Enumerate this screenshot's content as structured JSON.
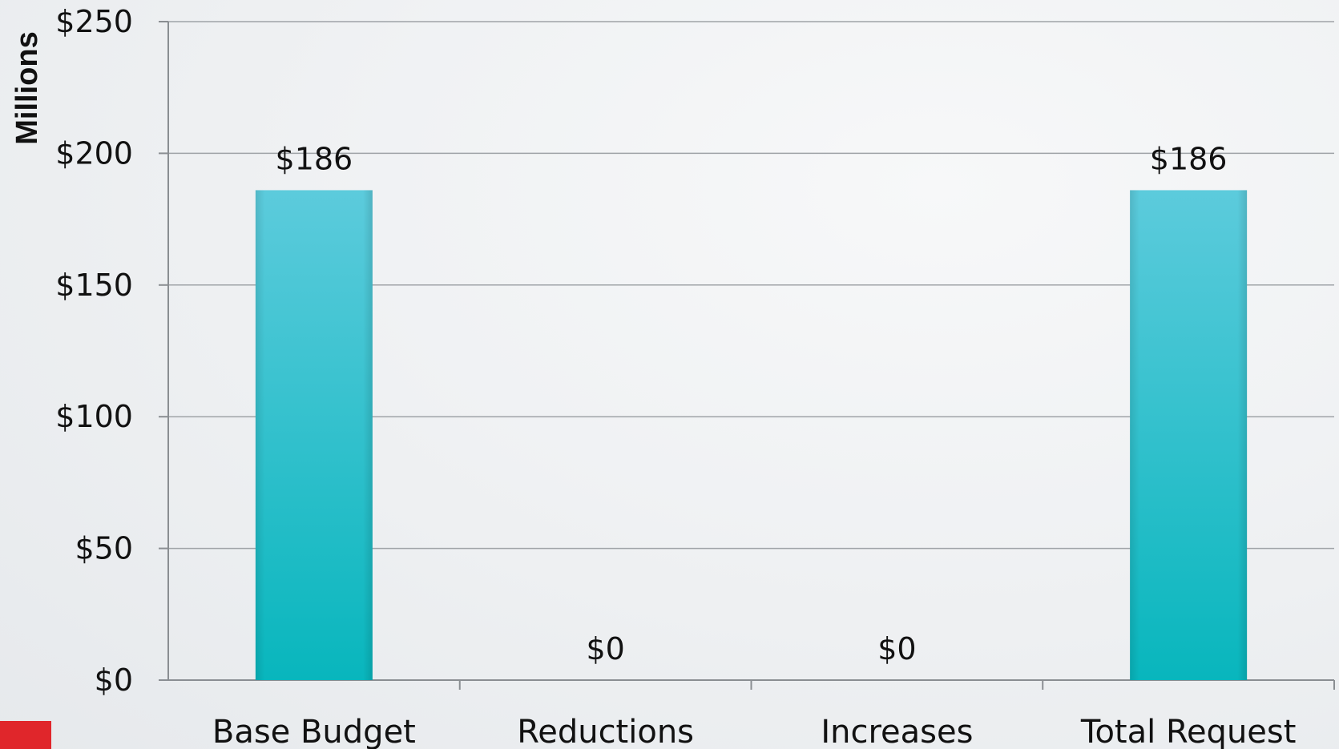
{
  "chart_data": {
    "type": "bar",
    "categories": [
      "Base Budget",
      "Reductions",
      "Increases",
      "Total Request"
    ],
    "values": [
      186,
      0,
      0,
      186
    ],
    "data_labels": [
      "$186",
      "$0",
      "$0",
      "$186"
    ],
    "ylabel": "Millions",
    "ylim": [
      0,
      250
    ],
    "y_ticks": [
      0,
      50,
      100,
      150,
      200,
      250
    ],
    "y_tick_labels": [
      "$0",
      "$50",
      "$100",
      "$150",
      "$200",
      "$250"
    ],
    "grid": true,
    "legend": "none",
    "bar_color_top": "#5ccbdc",
    "bar_color_bottom": "#08b6bd"
  }
}
